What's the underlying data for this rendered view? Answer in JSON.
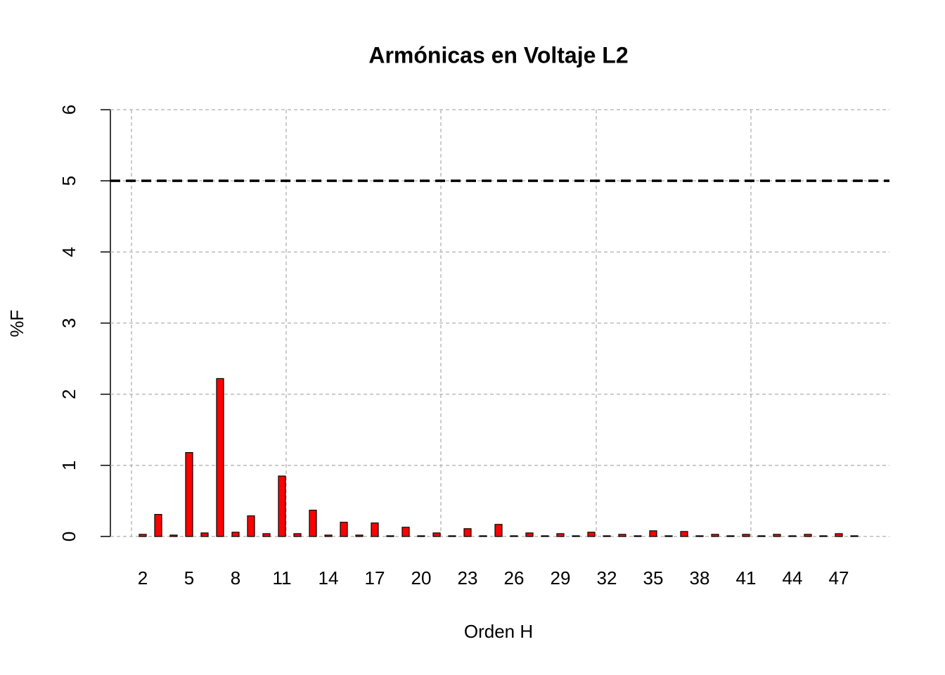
{
  "chart_data": {
    "type": "bar",
    "title": "Armónicas en Voltaje L2",
    "xlabel": "Orden H",
    "ylabel": "%F",
    "categories": [
      "2",
      null,
      null,
      "5",
      null,
      null,
      "8",
      null,
      null,
      "11",
      null,
      null,
      "14",
      null,
      null,
      "17",
      null,
      null,
      "20",
      null,
      null,
      "23",
      null,
      null,
      "26",
      null,
      null,
      "29",
      null,
      null,
      "32",
      null,
      null,
      "35",
      null,
      null,
      "38",
      null,
      null,
      "41",
      null,
      null,
      "44",
      null,
      null,
      "47",
      null
    ],
    "values": [
      0.03,
      0.31,
      0.02,
      1.18,
      0.05,
      2.22,
      0.06,
      0.29,
      0.04,
      0.85,
      0.04,
      0.37,
      0.02,
      0.2,
      0.02,
      0.19,
      0.01,
      0.13,
      0.01,
      0.05,
      0.01,
      0.11,
      0.01,
      0.17,
      0.01,
      0.05,
      0.01,
      0.04,
      0.01,
      0.06,
      0.01,
      0.03,
      0.01,
      0.08,
      0.01,
      0.07,
      0.01,
      0.03,
      0.01,
      0.03,
      0.01,
      0.03,
      0.01,
      0.03,
      0.01,
      0.04,
      0.01
    ],
    "color": "#ff0000",
    "reference_line": 5,
    "ylim": [
      0,
      6
    ],
    "yticks": [
      0,
      1,
      2,
      3,
      4,
      5,
      6
    ],
    "grid": true
  }
}
